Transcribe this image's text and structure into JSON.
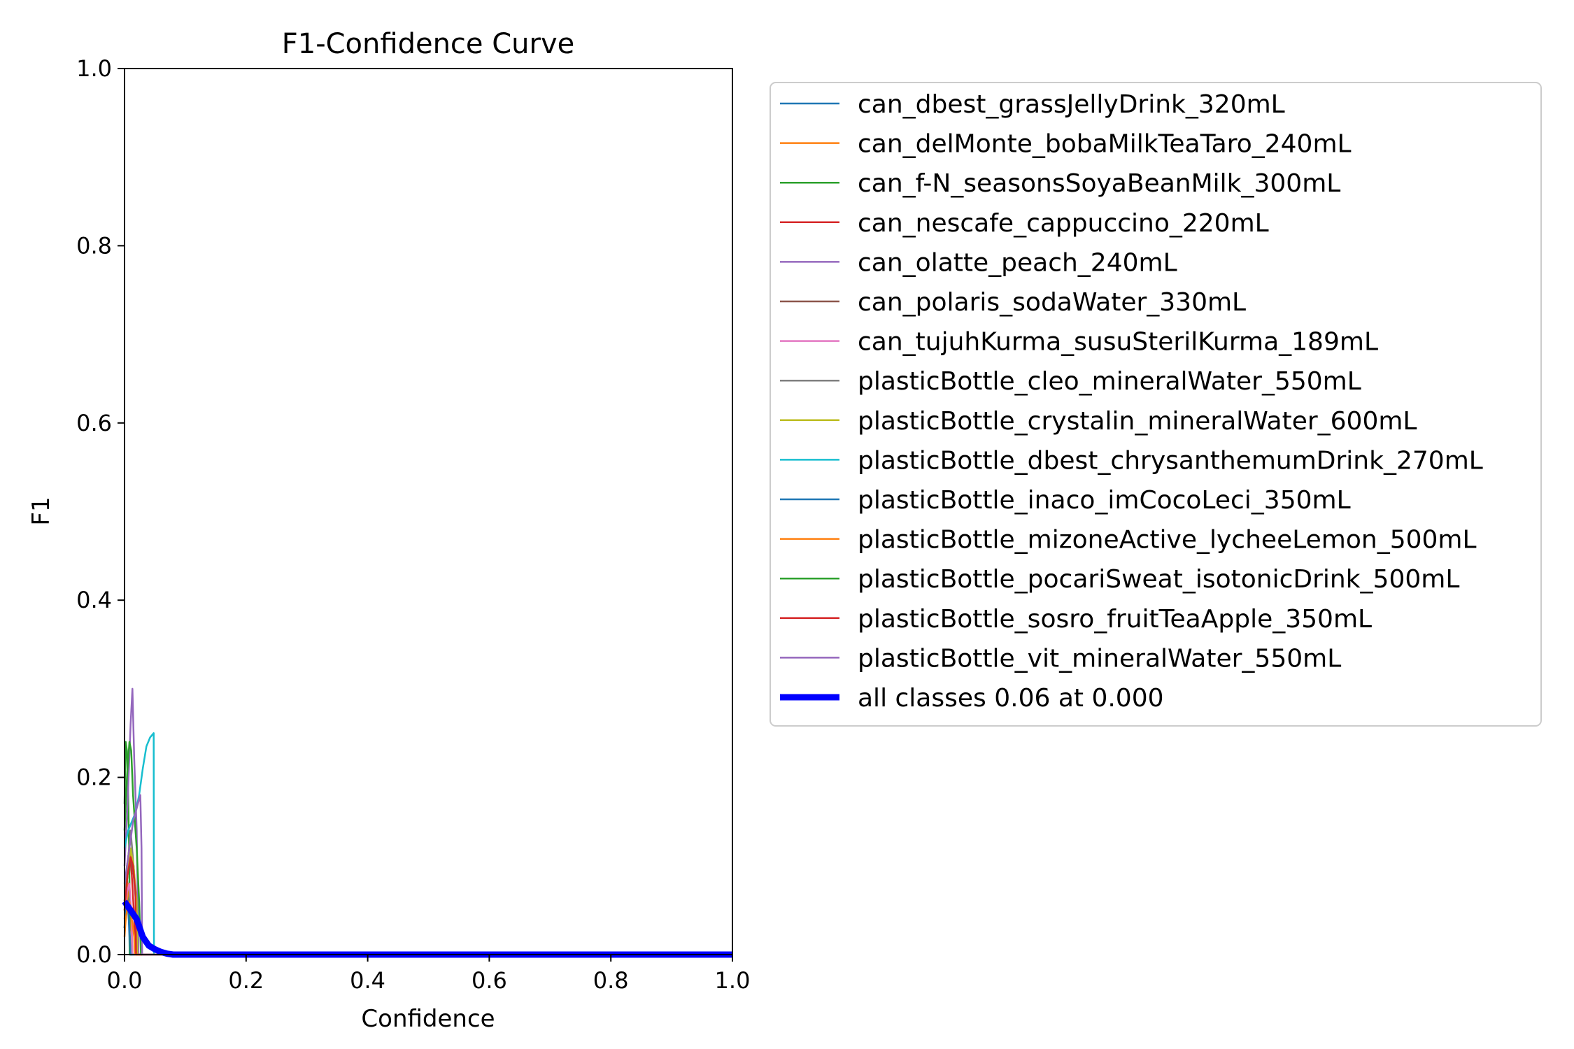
{
  "chart_data": {
    "type": "line",
    "title": "F1-Confidence Curve",
    "xlabel": "Confidence",
    "ylabel": "F1",
    "xlim": [
      0.0,
      1.0
    ],
    "ylim": [
      0.0,
      1.0
    ],
    "xticks": [
      "0.0",
      "0.2",
      "0.4",
      "0.6",
      "0.8",
      "1.0"
    ],
    "yticks": [
      "0.0",
      "0.2",
      "0.4",
      "0.6",
      "0.8",
      "1.0"
    ],
    "legend_position": "outside-right",
    "series": [
      {
        "name": "can_dbest_grassJellyDrink_320mL",
        "color": "#1f77b4",
        "x": [
          0.0,
          0.002,
          0.004,
          0.006,
          0.008,
          0.0085,
          1.0
        ],
        "y": [
          0.03,
          0.06,
          0.09,
          0.06,
          0.02,
          0.0,
          0.0
        ]
      },
      {
        "name": "can_delMonte_bobaMilkTeaTaro_240mL",
        "color": "#ff7f0e",
        "x": [
          0.0,
          0.003,
          0.006,
          0.009,
          0.012,
          0.013,
          1.0
        ],
        "y": [
          0.02,
          0.05,
          0.08,
          0.05,
          0.02,
          0.0,
          0.0
        ]
      },
      {
        "name": "can_f-N_seasonsSoyaBeanMilk_300mL",
        "color": "#2ca02c",
        "x": [
          0.0,
          0.002,
          0.004,
          0.006,
          0.008,
          0.0085,
          1.0
        ],
        "y": [
          0.17,
          0.24,
          0.23,
          0.18,
          0.1,
          0.0,
          0.0
        ]
      },
      {
        "name": "can_nescafe_cappuccino_220mL",
        "color": "#d62728",
        "x": [
          0.0,
          0.004,
          0.008,
          0.012,
          0.016,
          0.017,
          1.0
        ],
        "y": [
          0.06,
          0.1,
          0.12,
          0.09,
          0.04,
          0.0,
          0.0
        ]
      },
      {
        "name": "can_olatte_peach_240mL",
        "color": "#9467bd",
        "x": [
          0.0,
          0.005,
          0.01,
          0.013,
          0.016,
          0.02,
          0.022,
          0.023,
          1.0
        ],
        "y": [
          0.1,
          0.17,
          0.26,
          0.3,
          0.22,
          0.14,
          0.05,
          0.0,
          0.0
        ]
      },
      {
        "name": "can_polaris_sodaWater_330mL",
        "color": "#8c564b",
        "x": [
          0.0,
          0.005,
          0.01,
          0.015,
          0.02,
          0.021,
          1.0
        ],
        "y": [
          0.05,
          0.09,
          0.11,
          0.09,
          0.05,
          0.0,
          0.0
        ]
      },
      {
        "name": "can_tujuhKurma_susuSterilKurma_189mL",
        "color": "#e377c2",
        "x": [
          0.0,
          0.004,
          0.008,
          0.012,
          0.013,
          1.0
        ],
        "y": [
          0.04,
          0.07,
          0.08,
          0.04,
          0.0,
          0.0
        ]
      },
      {
        "name": "plasticBottle_cleo_mineralWater_550mL",
        "color": "#7f7f7f",
        "x": [
          0.0,
          0.005,
          0.01,
          0.015,
          0.02,
          0.021,
          1.0
        ],
        "y": [
          0.06,
          0.1,
          0.14,
          0.1,
          0.05,
          0.0,
          0.0
        ]
      },
      {
        "name": "plasticBottle_crystalin_mineralWater_600mL",
        "color": "#bcbd22",
        "x": [
          0.0,
          0.005,
          0.01,
          0.015,
          0.02,
          0.021,
          1.0
        ],
        "y": [
          0.05,
          0.09,
          0.12,
          0.1,
          0.06,
          0.0,
          0.0
        ]
      },
      {
        "name": "plasticBottle_dbest_chrysanthemumDrink_270mL",
        "color": "#17becf",
        "x": [
          0.0,
          0.006,
          0.012,
          0.018,
          0.024,
          0.03,
          0.036,
          0.042,
          0.048,
          0.0485,
          1.0
        ],
        "y": [
          0.12,
          0.14,
          0.15,
          0.16,
          0.18,
          0.21,
          0.235,
          0.245,
          0.25,
          0.0,
          0.0
        ]
      },
      {
        "name": "plasticBottle_inaco_imCocoLeci_350mL",
        "color": "#1f77b4",
        "x": [
          0.0,
          0.003,
          0.006,
          0.009,
          0.01,
          1.0
        ],
        "y": [
          0.03,
          0.06,
          0.05,
          0.02,
          0.0,
          0.0
        ]
      },
      {
        "name": "plasticBottle_mizoneActive_lycheeLemon_500mL",
        "color": "#ff7f0e",
        "x": [
          0.0,
          0.004,
          0.008,
          0.012,
          0.016,
          0.017,
          1.0
        ],
        "y": [
          0.03,
          0.05,
          0.06,
          0.04,
          0.02,
          0.0,
          0.0
        ]
      },
      {
        "name": "plasticBottle_pocariSweat_isotonicDrink_500mL",
        "color": "#2ca02c",
        "x": [
          0.0,
          0.004,
          0.008,
          0.011,
          0.014,
          0.02,
          0.024,
          0.026,
          0.027,
          1.0
        ],
        "y": [
          0.14,
          0.2,
          0.24,
          0.23,
          0.18,
          0.12,
          0.06,
          0.02,
          0.0,
          0.0
        ]
      },
      {
        "name": "plasticBottle_sosro_fruitTeaApple_350mL",
        "color": "#d62728",
        "x": [
          0.0,
          0.005,
          0.01,
          0.014,
          0.018,
          0.019,
          1.0
        ],
        "y": [
          0.05,
          0.09,
          0.11,
          0.1,
          0.07,
          0.0,
          0.0
        ]
      },
      {
        "name": "plasticBottle_vit_mineralWater_550mL",
        "color": "#9467bd",
        "x": [
          0.0,
          0.008,
          0.014,
          0.018,
          0.022,
          0.026,
          0.028,
          0.029,
          1.0
        ],
        "y": [
          0.08,
          0.12,
          0.15,
          0.16,
          0.17,
          0.18,
          0.12,
          0.0,
          0.0
        ]
      },
      {
        "name": "all classes 0.06 at 0.000",
        "color": "#0000ff",
        "bold": true,
        "x": [
          0.0,
          0.01,
          0.02,
          0.03,
          0.04,
          0.05,
          0.06,
          0.07,
          0.08,
          0.1,
          1.0
        ],
        "y": [
          0.06,
          0.05,
          0.04,
          0.02,
          0.01,
          0.006,
          0.003,
          0.001,
          0.0,
          0.0,
          0.0
        ]
      }
    ]
  }
}
